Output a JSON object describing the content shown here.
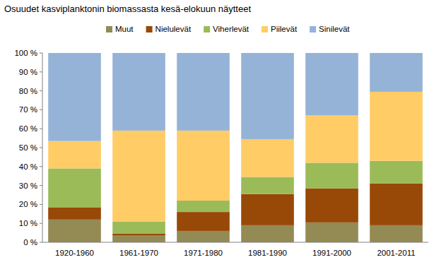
{
  "chart_data": {
    "type": "bar",
    "title": "Osuudet kasviplanktonin biomassasta kesä-elokuun näytteet",
    "stacked": true,
    "grid": false,
    "legend": "top",
    "categories": [
      "1920-1960",
      "1961-1970",
      "1971-1980",
      "1981-1990",
      "1991-2000",
      "2001-2011"
    ],
    "series": [
      {
        "name": "Muut",
        "color": "#948a54",
        "values": [
          12,
          3.5,
          6,
          9,
          10.5,
          9
        ]
      },
      {
        "name": "Nielulevät",
        "color": "#984807",
        "values": [
          6.5,
          1,
          10,
          16.5,
          18,
          22
        ]
      },
      {
        "name": "Viherlevät",
        "color": "#9bbb59",
        "values": [
          20.5,
          6.5,
          6,
          9,
          13.5,
          12
        ]
      },
      {
        "name": "Piilevät",
        "color": "#ffcc66",
        "values": [
          14.5,
          48,
          37,
          20,
          25,
          36.5
        ]
      },
      {
        "name": "Sinilevät",
        "color": "#95b3d7",
        "values": [
          46.5,
          41,
          41,
          45.5,
          33,
          20.5
        ]
      }
    ],
    "ylim": [
      0,
      100
    ],
    "yticks": [
      {
        "value": 0,
        "label": "0 %"
      },
      {
        "value": 10,
        "label": "10 %"
      },
      {
        "value": 20,
        "label": "20 %"
      },
      {
        "value": 30,
        "label": "30 %"
      },
      {
        "value": 40,
        "label": "40 %"
      },
      {
        "value": 50,
        "label": "50 %"
      },
      {
        "value": 60,
        "label": "60 %"
      },
      {
        "value": 70,
        "label": "70 %"
      },
      {
        "value": 80,
        "label": "80 %"
      },
      {
        "value": 90,
        "label": "90 %"
      },
      {
        "value": 100,
        "label": "100 %"
      }
    ]
  }
}
